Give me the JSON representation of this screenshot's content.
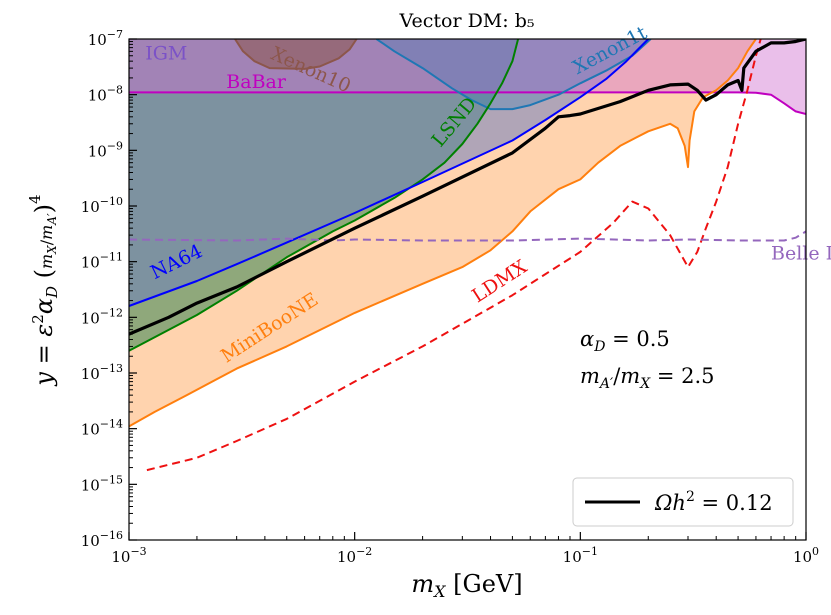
{
  "chart_data": {
    "type": "line",
    "title": "Vector DM: b₅",
    "xlabel": "mₓ [GeV]",
    "ylabel": "y = ε²α_D (m_X/m_A′)⁴",
    "xscale": "log",
    "yscale": "log",
    "xlim": [
      0.001,
      1
    ],
    "ylim": [
      1e-16,
      1e-07
    ],
    "grid": false,
    "legend_position": "bottom-right",
    "x_ticks": [
      {
        "v": 0.001,
        "base": "10",
        "exp": "−3"
      },
      {
        "v": 0.01,
        "base": "10",
        "exp": "−2"
      },
      {
        "v": 0.1,
        "base": "10",
        "exp": "−1"
      },
      {
        "v": 1,
        "base": "10",
        "exp": "0"
      }
    ],
    "y_ticks": [
      {
        "v": 1e-16,
        "base": "10",
        "exp": "−16"
      },
      {
        "v": 1e-15,
        "base": "10",
        "exp": "−15"
      },
      {
        "v": 1e-14,
        "base": "10",
        "exp": "−14"
      },
      {
        "v": 1e-13,
        "base": "10",
        "exp": "−13"
      },
      {
        "v": 1e-12,
        "base": "10",
        "exp": "−12"
      },
      {
        "v": 1e-11,
        "base": "10",
        "exp": "−11"
      },
      {
        "v": 1e-10,
        "base": "10",
        "exp": "−10"
      },
      {
        "v": 1e-09,
        "base": "10",
        "exp": "−9"
      },
      {
        "v": 1e-08,
        "base": "10",
        "exp": "−8"
      },
      {
        "v": 1e-07,
        "base": "10",
        "exp": "−7"
      }
    ],
    "annotations": [
      "α_D = 0.5",
      "m_A′/m_X = 2.5"
    ],
    "legend": [
      {
        "label": "Ωh² = 0.12",
        "color": "#000000"
      }
    ],
    "series": [
      {
        "name": "IGM",
        "color": "#7b52c7",
        "fill": "#8d5fd3",
        "points": [
          [
            0.001,
            1e-07
          ],
          [
            1,
            1e-07
          ]
        ]
      },
      {
        "name": "BaBar",
        "color": "#c000c0",
        "fill": "#d070d0",
        "points": [
          [
            0.001,
            1.1e-08
          ],
          [
            0.3,
            1.1e-08
          ],
          [
            0.5,
            1.1e-08
          ],
          [
            0.6,
            1.08e-08
          ],
          [
            0.7,
            1e-08
          ],
          [
            0.8,
            7e-09
          ],
          [
            0.9,
            5e-09
          ],
          [
            1,
            4.5e-09
          ]
        ]
      },
      {
        "name": "Xenon10",
        "color": "#8c564b",
        "fill": "#8c564b",
        "points": [
          [
            0.00295,
            1e-07
          ],
          [
            0.0032,
            6e-08
          ],
          [
            0.0036,
            4e-08
          ],
          [
            0.0042,
            3e-08
          ],
          [
            0.006,
            2.9e-08
          ],
          [
            0.007,
            3.2e-08
          ],
          [
            0.0085,
            4.5e-08
          ],
          [
            0.0095,
            6.5e-08
          ],
          [
            0.0102,
            1e-07
          ]
        ]
      },
      {
        "name": "Xenon1t",
        "color": "#1f77b4",
        "fill": "#1f77b4",
        "points": [
          [
            0.0125,
            1e-07
          ],
          [
            0.015,
            6e-08
          ],
          [
            0.02,
            3e-08
          ],
          [
            0.027,
            1.3e-08
          ],
          [
            0.033,
            8e-09
          ],
          [
            0.04,
            5.5e-09
          ],
          [
            0.05,
            5.5e-09
          ],
          [
            0.06,
            6.5e-09
          ],
          [
            0.08,
            1e-08
          ],
          [
            0.1,
            1.6e-08
          ],
          [
            0.13,
            2.7e-08
          ],
          [
            0.17,
            5e-08
          ],
          [
            0.205,
            1e-07
          ]
        ]
      },
      {
        "name": "LSND",
        "color": "#008000",
        "fill": "#6a9a6a",
        "points": [
          [
            0.001,
            2.5e-13
          ],
          [
            0.002,
            1.1e-12
          ],
          [
            0.003,
            3e-12
          ],
          [
            0.005,
            1.2e-11
          ],
          [
            0.008,
            3.5e-11
          ],
          [
            0.01,
            5.5e-11
          ],
          [
            0.015,
            1.4e-10
          ],
          [
            0.02,
            3e-10
          ],
          [
            0.025,
            6e-10
          ],
          [
            0.03,
            1.3e-09
          ],
          [
            0.035,
            3e-09
          ],
          [
            0.04,
            7e-09
          ],
          [
            0.045,
            1.6e-08
          ],
          [
            0.05,
            4e-08
          ],
          [
            0.053,
            1e-07
          ]
        ]
      },
      {
        "name": "NA64",
        "color": "#0000ff",
        "fill": "#6f7fc0",
        "points": [
          [
            0.001,
            1.6e-12
          ],
          [
            0.002,
            4.5e-12
          ],
          [
            0.003,
            9e-12
          ],
          [
            0.005,
            2.2e-11
          ],
          [
            0.01,
            7.5e-11
          ],
          [
            0.02,
            2.7e-10
          ],
          [
            0.05,
            1.5e-09
          ],
          [
            0.07,
            3.5e-09
          ],
          [
            0.1,
            9e-09
          ],
          [
            0.13,
            1.9e-08
          ],
          [
            0.16,
            4e-08
          ],
          [
            0.2,
            1e-07
          ]
        ]
      },
      {
        "name": "MiniBooNE",
        "color": "#ff7f0e",
        "fill": "#ffd3ae",
        "points": [
          [
            0.001,
            1.1e-14
          ],
          [
            0.0013,
            2e-14
          ],
          [
            0.0018,
            4e-14
          ],
          [
            0.003,
            1.2e-13
          ],
          [
            0.005,
            3e-13
          ],
          [
            0.01,
            1.2e-12
          ],
          [
            0.02,
            4e-12
          ],
          [
            0.03,
            8e-12
          ],
          [
            0.04,
            1.6e-11
          ],
          [
            0.05,
            3.5e-11
          ],
          [
            0.06,
            8e-11
          ],
          [
            0.08,
            2e-10
          ],
          [
            0.1,
            3e-10
          ],
          [
            0.12,
            6e-10
          ],
          [
            0.15,
            1.2e-09
          ],
          [
            0.2,
            2.2e-09
          ],
          [
            0.25,
            3e-09
          ],
          [
            0.27,
            2.5e-09
          ],
          [
            0.29,
            1.2e-09
          ],
          [
            0.3,
            5e-10
          ],
          [
            0.305,
            1.5e-09
          ],
          [
            0.32,
            5e-09
          ],
          [
            0.35,
            9e-09
          ],
          [
            0.4,
            1.2e-08
          ],
          [
            0.45,
            1.8e-08
          ],
          [
            0.5,
            3e-08
          ],
          [
            0.55,
            6e-08
          ],
          [
            0.6,
            1e-07
          ]
        ]
      },
      {
        "name": "LDMX",
        "color": "#ee1111",
        "dash": true,
        "points": [
          [
            0.0012,
            1.8e-15
          ],
          [
            0.002,
            3e-15
          ],
          [
            0.003,
            6e-15
          ],
          [
            0.005,
            1.5e-14
          ],
          [
            0.01,
            7e-14
          ],
          [
            0.02,
            3e-13
          ],
          [
            0.05,
            2.5e-12
          ],
          [
            0.1,
            1.5e-11
          ],
          [
            0.14,
            5e-11
          ],
          [
            0.17,
            1.2e-10
          ],
          [
            0.2,
            9e-11
          ],
          [
            0.25,
            3e-11
          ],
          [
            0.3,
            8e-12
          ],
          [
            0.33,
            1.5e-11
          ],
          [
            0.36,
            4e-11
          ],
          [
            0.4,
            1.2e-10
          ],
          [
            0.45,
            5e-10
          ],
          [
            0.5,
            3e-09
          ],
          [
            0.55,
            1.2e-08
          ],
          [
            0.6,
            5e-08
          ],
          [
            0.63,
            1e-07
          ]
        ]
      },
      {
        "name": "Belle II",
        "color": "#9467bd",
        "dash": true,
        "points": [
          [
            0.001,
            2.5e-11
          ],
          [
            0.003,
            2.4e-11
          ],
          [
            0.005,
            2.6e-11
          ],
          [
            0.008,
            2.4e-11
          ],
          [
            0.01,
            2.5e-11
          ],
          [
            0.02,
            2.4e-11
          ],
          [
            0.05,
            2.4e-11
          ],
          [
            0.1,
            2.6e-11
          ],
          [
            0.2,
            2.4e-11
          ],
          [
            0.3,
            2.5e-11
          ],
          [
            0.5,
            2.4e-11
          ],
          [
            0.8,
            2.4e-11
          ],
          [
            0.9,
            2.7e-11
          ],
          [
            1,
            3.5e-11
          ]
        ]
      },
      {
        "name": "Ωh² = 0.12",
        "color": "#000000",
        "thick": true,
        "points": [
          [
            0.001,
            5e-13
          ],
          [
            0.0015,
            1e-12
          ],
          [
            0.002,
            1.8e-12
          ],
          [
            0.003,
            3.5e-12
          ],
          [
            0.005,
            1e-11
          ],
          [
            0.01,
            4e-11
          ],
          [
            0.02,
            1.5e-10
          ],
          [
            0.05,
            9e-10
          ],
          [
            0.07,
            2.5e-09
          ],
          [
            0.08,
            4e-09
          ],
          [
            0.09,
            4.2e-09
          ],
          [
            0.1,
            4.5e-09
          ],
          [
            0.15,
            7.5e-09
          ],
          [
            0.2,
            1.2e-08
          ],
          [
            0.25,
            1.5e-08
          ],
          [
            0.3,
            1.55e-08
          ],
          [
            0.33,
            1.2e-08
          ],
          [
            0.36,
            8e-09
          ],
          [
            0.4,
            1e-08
          ],
          [
            0.45,
            1.5e-08
          ],
          [
            0.5,
            1.8e-08
          ],
          [
            0.52,
            1.2e-08
          ],
          [
            0.53,
            3e-08
          ],
          [
            0.6,
            6e-08
          ],
          [
            0.7,
            8.5e-08
          ],
          [
            0.8,
            8.5e-08
          ],
          [
            0.9,
            9e-08
          ],
          [
            1,
            1e-07
          ]
        ]
      }
    ],
    "labels": [
      {
        "text": "IGM",
        "x": 0.00118,
        "y": 4.3e-08,
        "rot": 0,
        "color": "#7b52c7"
      },
      {
        "text": "BaBar",
        "x": 0.0027,
        "y": 1.33e-08,
        "rot": 0,
        "color": "#c000c0"
      },
      {
        "text": "Xenon10",
        "x": 0.0042,
        "y": 4.5e-08,
        "rot": 24,
        "color": "#8c564b"
      },
      {
        "text": "Xenon1t",
        "x": 0.097,
        "y": 2.3e-08,
        "rot": -28,
        "color": "#1f77b4"
      },
      {
        "text": "LSND",
        "x": 0.024,
        "y": 1.1e-09,
        "rot": -50,
        "color": "#008000"
      },
      {
        "text": "NA64",
        "x": 0.0013,
        "y": 4.8e-12,
        "rot": -26,
        "color": "#0000ff"
      },
      {
        "text": "MiniBooNE",
        "x": 0.0027,
        "y": 1.5e-13,
        "rot": -33,
        "color": "#ff7f0e"
      },
      {
        "text": "LDMX",
        "x": 0.035,
        "y": 1.8e-12,
        "rot": -33,
        "color": "#ee1111"
      },
      {
        "text": "Belle II",
        "x": 0.7,
        "y": 1.1e-11,
        "rot": 0,
        "color": "#9467bd"
      }
    ]
  }
}
